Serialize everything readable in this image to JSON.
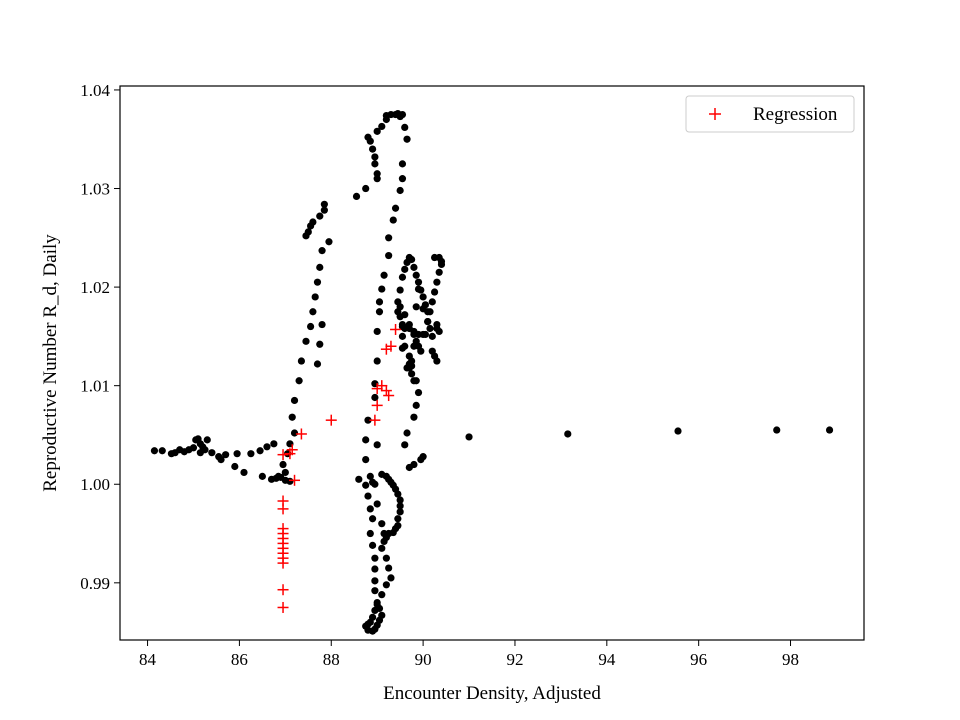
{
  "chart_data": {
    "type": "scatter",
    "title": "",
    "xlabel": "Encounter Density, Adjusted",
    "ylabel": "Reproductive Number R_d, Daily",
    "xlim": [
      83.4,
      99.6
    ],
    "ylim": [
      0.9842,
      1.0404
    ],
    "xticks": [
      84,
      86,
      88,
      90,
      92,
      94,
      96,
      98
    ],
    "yticks": [
      0.99,
      1.0,
      1.01,
      1.02,
      1.03,
      1.04
    ],
    "ytick_labels": [
      "0.99",
      "1.00",
      "1.01",
      "1.02",
      "1.03",
      "1.04"
    ],
    "grid": false,
    "legend_position": "top-right",
    "series": [
      {
        "marker": "dot",
        "color": "#000000",
        "points": [
          [
            84.15,
            1.0034
          ],
          [
            84.32,
            1.0034
          ],
          [
            84.52,
            1.0031
          ],
          [
            84.6,
            1.0032
          ],
          [
            84.7,
            1.0035
          ],
          [
            84.8,
            1.0033
          ],
          [
            84.9,
            1.0035
          ],
          [
            85.0,
            1.0037
          ],
          [
            85.05,
            1.0045
          ],
          [
            85.1,
            1.0046
          ],
          [
            85.15,
            1.0041
          ],
          [
            85.2,
            1.0038
          ],
          [
            85.25,
            1.0035
          ],
          [
            85.3,
            1.0045
          ],
          [
            85.15,
            1.0032
          ],
          [
            85.4,
            1.0032
          ],
          [
            85.55,
            1.0028
          ],
          [
            85.7,
            1.003
          ],
          [
            85.6,
            1.0025
          ],
          [
            85.95,
            1.0031
          ],
          [
            85.9,
            1.0018
          ],
          [
            86.1,
            1.0012
          ],
          [
            86.25,
            1.0031
          ],
          [
            86.45,
            1.0034
          ],
          [
            86.5,
            1.0008
          ],
          [
            86.6,
            1.0038
          ],
          [
            86.75,
            1.0041
          ],
          [
            86.7,
            1.0005
          ],
          [
            86.8,
            1.0006
          ],
          [
            86.85,
            1.0008
          ],
          [
            86.9,
            1.0007
          ],
          [
            87.0,
            1.0012
          ],
          [
            87.05,
            1.0031
          ],
          [
            86.95,
            1.002
          ],
          [
            87.1,
            1.0041
          ],
          [
            87.2,
            1.0052
          ],
          [
            87.15,
            1.0068
          ],
          [
            87.2,
            1.0085
          ],
          [
            87.3,
            1.0105
          ],
          [
            87.0,
            1.0004
          ],
          [
            87.1,
            1.0003
          ],
          [
            87.35,
            1.0125
          ],
          [
            87.45,
            1.0145
          ],
          [
            87.55,
            1.016
          ],
          [
            87.6,
            1.0175
          ],
          [
            87.65,
            1.019
          ],
          [
            87.7,
            1.0205
          ],
          [
            87.75,
            1.022
          ],
          [
            87.8,
            1.0237
          ],
          [
            87.55,
            1.0262
          ],
          [
            87.6,
            1.0266
          ],
          [
            87.5,
            1.0256
          ],
          [
            87.45,
            1.0252
          ],
          [
            87.75,
            1.0272
          ],
          [
            87.85,
            1.0278
          ],
          [
            87.85,
            1.0284
          ],
          [
            87.95,
            1.0246
          ],
          [
            87.8,
            1.0162
          ],
          [
            87.75,
            1.0142
          ],
          [
            87.7,
            1.0122
          ],
          [
            88.55,
            1.0292
          ],
          [
            88.75,
            1.03
          ],
          [
            88.85,
            1.0348
          ],
          [
            88.8,
            1.0352
          ],
          [
            88.9,
            1.034
          ],
          [
            88.95,
            1.0325
          ],
          [
            89.0,
            1.031
          ],
          [
            89.0,
            1.0315
          ],
          [
            88.95,
            1.0332
          ],
          [
            89.0,
            1.0358
          ],
          [
            89.1,
            1.0363
          ],
          [
            89.2,
            1.037
          ],
          [
            89.2,
            1.0374
          ],
          [
            89.3,
            1.0375
          ],
          [
            89.4,
            1.0375
          ],
          [
            89.45,
            1.0376
          ],
          [
            89.5,
            1.0373
          ],
          [
            89.55,
            1.0375
          ],
          [
            89.6,
            1.0362
          ],
          [
            89.65,
            1.035
          ],
          [
            89.55,
            1.0325
          ],
          [
            89.55,
            1.031
          ],
          [
            89.5,
            1.0298
          ],
          [
            89.4,
            1.028
          ],
          [
            89.35,
            1.0268
          ],
          [
            89.25,
            1.025
          ],
          [
            89.25,
            1.0232
          ],
          [
            89.15,
            1.0212
          ],
          [
            89.1,
            1.0198
          ],
          [
            89.05,
            1.0185
          ],
          [
            89.05,
            1.0175
          ],
          [
            89.0,
            1.0155
          ],
          [
            89.0,
            1.0125
          ],
          [
            88.95,
            1.0102
          ],
          [
            88.95,
            1.0088
          ],
          [
            88.8,
            1.0065
          ],
          [
            88.75,
            1.0045
          ],
          [
            89.0,
            1.004
          ],
          [
            89.1,
            1.001
          ],
          [
            88.9,
            1.0002
          ],
          [
            88.6,
            1.0005
          ],
          [
            88.75,
            1.0025
          ],
          [
            88.85,
            1.0008
          ],
          [
            89.2,
            1.0008
          ],
          [
            89.25,
            1.0005
          ],
          [
            89.3,
            1.0002
          ],
          [
            89.35,
            0.9999
          ],
          [
            89.4,
            0.9995
          ],
          [
            89.45,
            0.999
          ],
          [
            89.5,
            0.9984
          ],
          [
            89.5,
            0.9978
          ],
          [
            89.5,
            0.9972
          ],
          [
            89.45,
            0.9965
          ],
          [
            89.45,
            0.9958
          ],
          [
            89.4,
            0.9955
          ],
          [
            89.35,
            0.9951
          ],
          [
            89.25,
            0.995
          ],
          [
            89.2,
            0.9946
          ],
          [
            89.15,
            0.9942
          ],
          [
            89.1,
            0.9935
          ],
          [
            89.2,
            0.9925
          ],
          [
            89.25,
            0.9915
          ],
          [
            89.3,
            0.9905
          ],
          [
            89.2,
            0.9898
          ],
          [
            89.1,
            0.9888
          ],
          [
            89.0,
            0.9878
          ],
          [
            88.95,
            0.9872
          ],
          [
            88.9,
            0.9865
          ],
          [
            88.85,
            0.986
          ],
          [
            88.8,
            0.9858
          ],
          [
            88.75,
            0.9856
          ],
          [
            88.8,
            0.9852
          ],
          [
            88.9,
            0.9851
          ],
          [
            88.95,
            0.9853
          ],
          [
            89.0,
            0.9857
          ],
          [
            89.05,
            0.9862
          ],
          [
            89.1,
            0.9867
          ],
          [
            89.05,
            0.9874
          ],
          [
            89.0,
            0.988
          ],
          [
            88.95,
            0.9892
          ],
          [
            88.95,
            0.9902
          ],
          [
            88.95,
            0.9914
          ],
          [
            88.95,
            0.9925
          ],
          [
            88.9,
            0.9938
          ],
          [
            88.85,
            0.995
          ],
          [
            88.9,
            0.9965
          ],
          [
            88.85,
            0.9975
          ],
          [
            88.8,
            0.9988
          ],
          [
            88.75,
            0.9999
          ],
          [
            88.95,
            1.0
          ],
          [
            89.0,
            0.998
          ],
          [
            89.1,
            0.996
          ],
          [
            89.15,
            0.995
          ],
          [
            89.8,
            1.002
          ],
          [
            89.7,
            1.0017
          ],
          [
            89.6,
            1.004
          ],
          [
            89.65,
            1.0052
          ],
          [
            89.8,
            1.0068
          ],
          [
            89.85,
            1.008
          ],
          [
            89.9,
            1.0093
          ],
          [
            89.85,
            1.0105
          ],
          [
            89.75,
            1.012
          ],
          [
            89.7,
            1.013
          ],
          [
            89.6,
            1.014
          ],
          [
            89.55,
            1.016
          ],
          [
            89.5,
            1.017
          ],
          [
            89.45,
            1.0185
          ],
          [
            89.5,
            1.0197
          ],
          [
            89.55,
            1.021
          ],
          [
            89.6,
            1.0218
          ],
          [
            89.65,
            1.0225
          ],
          [
            89.7,
            1.023
          ],
          [
            89.75,
            1.0228
          ],
          [
            89.8,
            1.022
          ],
          [
            89.85,
            1.0212
          ],
          [
            89.9,
            1.0205
          ],
          [
            89.95,
            1.0197
          ],
          [
            90.0,
            1.019
          ],
          [
            90.05,
            1.0182
          ],
          [
            90.1,
            1.0175
          ],
          [
            90.1,
            1.0165
          ],
          [
            90.15,
            1.0158
          ],
          [
            90.2,
            1.015
          ],
          [
            90.3,
            1.0158
          ],
          [
            90.35,
            1.0155
          ],
          [
            90.3,
            1.0162
          ],
          [
            90.25,
            1.023
          ],
          [
            90.35,
            1.023
          ],
          [
            90.4,
            1.0226
          ],
          [
            90.4,
            1.0223
          ],
          [
            90.35,
            1.0215
          ],
          [
            90.3,
            1.0205
          ],
          [
            90.25,
            1.0195
          ],
          [
            90.2,
            1.0185
          ],
          [
            90.15,
            1.0175
          ],
          [
            90.1,
            1.0165
          ],
          [
            90.05,
            1.0152
          ],
          [
            90.0,
            1.0152
          ],
          [
            89.9,
            1.0152
          ],
          [
            89.8,
            1.0155
          ],
          [
            89.7,
            1.0158
          ],
          [
            89.6,
            1.0158
          ],
          [
            89.55,
            1.0162
          ],
          [
            89.45,
            1.0175
          ],
          [
            89.5,
            1.018
          ],
          [
            89.6,
            1.0172
          ],
          [
            89.7,
            1.0162
          ],
          [
            89.8,
            1.0152
          ],
          [
            89.85,
            1.0145
          ],
          [
            89.9,
            1.014
          ],
          [
            89.95,
            1.0135
          ],
          [
            90.0,
            1.0178
          ],
          [
            89.9,
            1.0198
          ],
          [
            89.85,
            1.018
          ],
          [
            89.8,
            1.014
          ],
          [
            89.75,
            1.0125
          ],
          [
            89.7,
            1.0122
          ],
          [
            89.65,
            1.0118
          ],
          [
            89.55,
            1.0138
          ],
          [
            89.55,
            1.015
          ],
          [
            90.2,
            1.0135
          ],
          [
            90.25,
            1.013
          ],
          [
            90.3,
            1.0125
          ],
          [
            89.8,
            1.0105
          ],
          [
            89.7,
            1.0118
          ],
          [
            89.75,
            1.0112
          ],
          [
            89.95,
            1.0025
          ],
          [
            90.0,
            1.0028
          ],
          [
            91.0,
            1.0048
          ],
          [
            93.15,
            1.0051
          ],
          [
            95.55,
            1.0054
          ],
          [
            97.7,
            1.0055
          ],
          [
            98.85,
            1.0055
          ]
        ]
      },
      {
        "name": "Regression",
        "marker": "plus",
        "color": "#ff0000",
        "points": [
          [
            86.95,
            1.003
          ],
          [
            87.1,
            1.0031
          ],
          [
            87.15,
            1.0035
          ],
          [
            87.35,
            1.0051
          ],
          [
            87.2,
            1.0004
          ],
          [
            88.0,
            1.0065
          ],
          [
            88.95,
            1.0065
          ],
          [
            89.0,
            1.008
          ],
          [
            89.0,
            1.0097
          ],
          [
            89.1,
            1.01
          ],
          [
            89.2,
            1.0095
          ],
          [
            89.25,
            1.009
          ],
          [
            89.2,
            1.0137
          ],
          [
            89.3,
            1.014
          ],
          [
            89.4,
            1.0157
          ],
          [
            86.95,
            0.9983
          ],
          [
            86.95,
            0.9975
          ],
          [
            86.95,
            0.9955
          ],
          [
            86.95,
            0.995
          ],
          [
            86.95,
            0.9945
          ],
          [
            86.95,
            0.994
          ],
          [
            86.95,
            0.9935
          ],
          [
            86.95,
            0.993
          ],
          [
            86.95,
            0.9925
          ],
          [
            86.95,
            0.992
          ],
          [
            86.95,
            0.9893
          ],
          [
            86.95,
            0.9875
          ]
        ]
      }
    ]
  }
}
